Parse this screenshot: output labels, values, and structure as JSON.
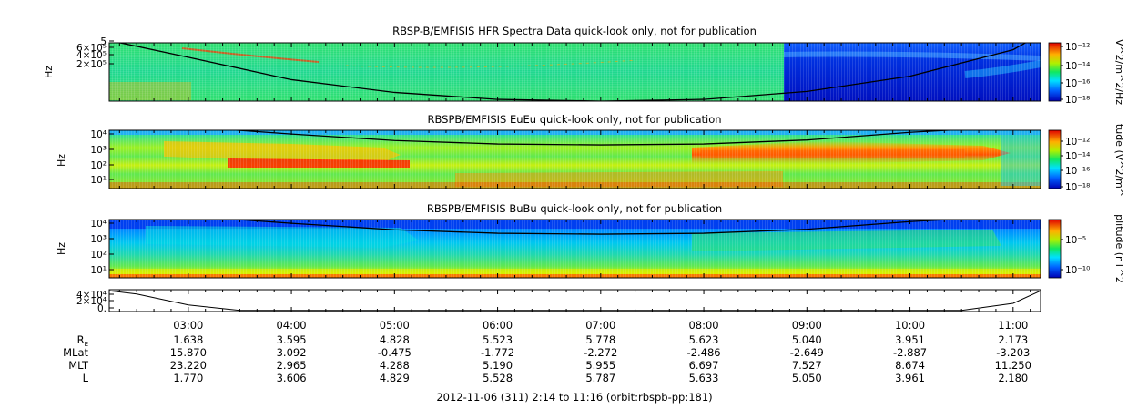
{
  "chart_data": {
    "type": "heatmap",
    "time_range": [
      "02:14",
      "11:16"
    ],
    "panels": [
      {
        "title": "RBSP-B/EMFISIS  HFR Spectra Data quick-look only, not for publication",
        "ylabel": "Hz",
        "yticks": [
          "5",
          "6×10⁵",
          "4×10⁵",
          "2×10⁵"
        ],
        "ylog": true,
        "ylim": [
          10000,
          500000
        ],
        "colorbar": {
          "label": "V^2/m^2/Hz",
          "ticks": [
            "10⁻¹²",
            "10⁻¹⁴",
            "10⁻¹⁶",
            "10⁻¹⁸"
          ],
          "range": [
            1e-18,
            1e-11
          ]
        },
        "data_gap_end": "08:48"
      },
      {
        "title": "RBSPB/EMFISIS  EuEu quick-look only, not for publication",
        "ylabel": "Hz",
        "yticks": [
          "10⁴",
          "10³",
          "10²",
          "10¹"
        ],
        "ylog": true,
        "ylim": [
          3,
          12000
        ],
        "colorbar": {
          "label": "tude (V^2/m^",
          "ticks": [
            "10⁻¹²",
            "10⁻¹⁴",
            "10⁻¹⁶",
            "10⁻¹⁸"
          ],
          "range": [
            1e-18,
            1e-11
          ]
        }
      },
      {
        "title": "RBSPB/EMFISIS  BuBu quick-look only, not for publication",
        "ylabel": "Hz",
        "yticks": [
          "10⁴",
          "10³",
          "10²",
          "10¹"
        ],
        "ylog": true,
        "ylim": [
          3,
          12000
        ],
        "colorbar": {
          "label": "plitude (nT^2",
          "ticks": [
            "10⁻⁵",
            "10⁻¹⁰"
          ],
          "range": [
            1e-12,
            0.001
          ]
        }
      },
      {
        "title": "",
        "ylabel": "",
        "yticks": [
          "4×10⁴",
          "2×10⁴",
          "0."
        ],
        "ylim": [
          0,
          40000
        ]
      }
    ],
    "xtick_labels": [
      "03:00",
      "04:00",
      "05:00",
      "06:00",
      "07:00",
      "08:00",
      "09:00",
      "10:00",
      "11:00"
    ],
    "ephemeris": {
      "row_labels": [
        "R",
        "MLat",
        "MLT",
        "L"
      ],
      "R_subscript": "E",
      "rows": [
        [
          "1.638",
          "3.595",
          "4.828",
          "5.523",
          "5.778",
          "5.623",
          "5.040",
          "3.951",
          "2.173"
        ],
        [
          "15.870",
          "3.092",
          "-0.475",
          "-1.772",
          "-2.272",
          "-2.486",
          "-2.649",
          "-2.887",
          "-3.203"
        ],
        [
          "23.220",
          "2.965",
          "4.288",
          "5.190",
          "5.955",
          "6.697",
          "7.527",
          "8.674",
          "11.250"
        ],
        [
          "1.770",
          "3.606",
          "4.829",
          "5.528",
          "5.787",
          "5.633",
          "5.050",
          "3.961",
          "2.180"
        ]
      ]
    },
    "footer": "2012-11-06 (311) 2:14 to 11:16 (orbit:rbspb-pp:181)",
    "gyro_line": {
      "x": [
        "02:20",
        "03:00",
        "04:00",
        "05:00",
        "06:00",
        "07:00",
        "08:00",
        "09:00",
        "10:00",
        "11:00",
        "11:10"
      ],
      "hz": [
        10000,
        3500,
        700,
        280,
        170,
        150,
        170,
        300,
        900,
        6000,
        12000
      ]
    },
    "density_line": {
      "x": [
        "02:14",
        "02:30",
        "03:00",
        "03:30",
        "10:30",
        "11:00",
        "11:16"
      ],
      "values": [
        38000,
        32000,
        12000,
        2000,
        2000,
        15000,
        38000
      ]
    }
  }
}
